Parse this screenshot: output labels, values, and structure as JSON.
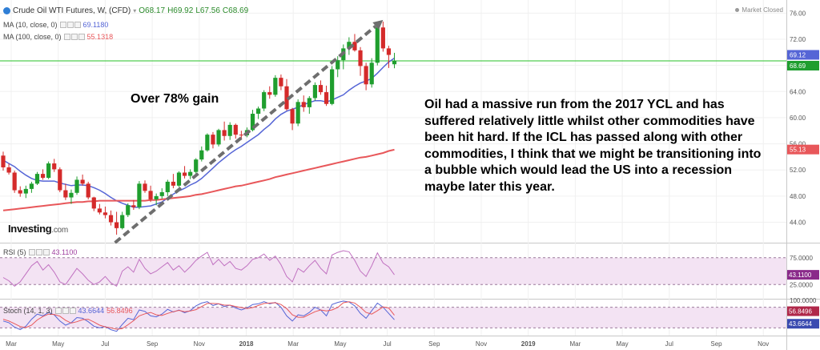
{
  "header": {
    "title": "Crude Oil WTI Futures, W, (CFD)",
    "ohlc": [
      "O68.17",
      "H69.92",
      "L67.56",
      "C68.69"
    ],
    "market_status": "Market Closed",
    "ma10_label": "MA (10, close, 0)",
    "ma10_value": "69.1180",
    "ma100_label": "MA (100, close, 0)",
    "ma100_value": "55.1318",
    "rsi_label": "RSI (5)",
    "rsi_value": "43.1100",
    "stoch_label": "Stoch (14, 1, 3)",
    "stoch_k_value": "43.6644",
    "stoch_d_value": "56.8496"
  },
  "annotations": {
    "gain": "Over 78% gain",
    "commentary": "Oil had a massive run from the 2017 YCL and has suffered relatively little whilst other commodities have been hit hard. If the ICL has passed along with other commodities, I think that we might be transitioning into a bubble which would lead the US into a recession maybe later this year."
  },
  "logo": {
    "name": "Investing",
    "suffix": ".com"
  },
  "colors": {
    "up": "#1f9e2e",
    "down": "#d42a2a",
    "ma10": "#5565d6",
    "ma100": "#e8575a",
    "rsi": "#c070c0",
    "stoch_k": "#5565d6",
    "stoch_d": "#e8575a",
    "price_line": "#27c227",
    "band": "#f3e3f3"
  },
  "chart_data": [
    {
      "type": "candlestick",
      "title": "Crude Oil WTI Futures, W, (CFD)",
      "x_ticks": [
        "Mar",
        "May",
        "Jul",
        "Sep",
        "Nov",
        "2018",
        "Mar",
        "May",
        "Jul",
        "Sep",
        "Nov",
        "2019",
        "Mar",
        "May",
        "Jul",
        "Sep",
        "Nov"
      ],
      "ylim": [
        41,
        78
      ],
      "y_ticks": [
        "44.00",
        "48.00",
        "52.00",
        "56.00",
        "60.00",
        "64.00",
        "68.00",
        "72.00",
        "76.00"
      ],
      "price_labels": [
        "69.12",
        "68.69",
        "55.13"
      ],
      "ohlc": [
        [
          54.2,
          54.8,
          51.9,
          52.4
        ],
        [
          52.4,
          53.0,
          51.3,
          51.6
        ],
        [
          51.6,
          51.9,
          48.5,
          48.9
        ],
        [
          48.9,
          49.5,
          47.9,
          48.4
        ],
        [
          48.4,
          49.6,
          47.7,
          49.1
        ],
        [
          49.1,
          50.2,
          48.5,
          49.9
        ],
        [
          49.9,
          51.7,
          49.7,
          51.4
        ],
        [
          51.4,
          52.1,
          50.5,
          50.8
        ],
        [
          50.8,
          53.3,
          50.6,
          53.0
        ],
        [
          53.0,
          53.7,
          51.7,
          52.1
        ],
        [
          52.1,
          52.4,
          48.6,
          48.9
        ],
        [
          48.9,
          49.9,
          47.4,
          47.8
        ],
        [
          47.8,
          49.0,
          46.8,
          48.5
        ],
        [
          48.5,
          51.0,
          48.2,
          50.5
        ],
        [
          50.5,
          51.3,
          49.6,
          49.9
        ],
        [
          49.9,
          50.2,
          47.5,
          47.8
        ],
        [
          47.8,
          47.9,
          45.7,
          46.1
        ],
        [
          46.1,
          46.8,
          45.2,
          45.5
        ],
        [
          45.5,
          46.4,
          44.6,
          45.1
        ],
        [
          45.1,
          45.8,
          43.5,
          44.0
        ],
        [
          44.0,
          45.6,
          42.1,
          43.1
        ],
        [
          43.1,
          45.6,
          42.9,
          45.1
        ],
        [
          45.1,
          46.9,
          44.8,
          46.6
        ],
        [
          46.6,
          47.4,
          45.9,
          46.3
        ],
        [
          46.3,
          50.3,
          46.0,
          49.9
        ],
        [
          49.9,
          50.4,
          48.5,
          48.8
        ],
        [
          48.8,
          49.6,
          47.1,
          47.5
        ],
        [
          47.5,
          48.4,
          46.6,
          48.0
        ],
        [
          48.0,
          49.2,
          47.6,
          48.6
        ],
        [
          48.6,
          50.5,
          48.0,
          50.2
        ],
        [
          50.2,
          51.4,
          49.2,
          49.6
        ],
        [
          49.6,
          51.8,
          49.4,
          51.6
        ],
        [
          51.6,
          52.6,
          50.7,
          51.1
        ],
        [
          51.1,
          52.1,
          50.6,
          51.7
        ],
        [
          51.7,
          53.8,
          51.3,
          53.6
        ],
        [
          53.6,
          55.6,
          53.3,
          55.0
        ],
        [
          55.0,
          57.6,
          54.8,
          57.4
        ],
        [
          57.4,
          57.8,
          55.3,
          55.9
        ],
        [
          55.9,
          58.3,
          55.6,
          58.1
        ],
        [
          58.1,
          59.4,
          56.5,
          57.2
        ],
        [
          57.2,
          59.3,
          56.6,
          58.9
        ],
        [
          58.9,
          59.1,
          56.8,
          57.4
        ],
        [
          57.4,
          58.0,
          56.6,
          57.3
        ],
        [
          57.3,
          58.5,
          57.0,
          58.1
        ],
        [
          58.1,
          61.2,
          57.9,
          60.6
        ],
        [
          60.6,
          61.7,
          59.8,
          61.4
        ],
        [
          61.4,
          64.2,
          61.0,
          63.9
        ],
        [
          63.9,
          64.8,
          62.9,
          63.5
        ],
        [
          63.5,
          66.5,
          63.2,
          66.1
        ],
        [
          66.1,
          66.6,
          64.2,
          64.8
        ],
        [
          64.8,
          65.9,
          61.1,
          61.3
        ],
        [
          61.3,
          61.5,
          58.1,
          59.1
        ],
        [
          59.1,
          62.8,
          58.7,
          62.4
        ],
        [
          62.4,
          63.4,
          60.9,
          61.6
        ],
        [
          61.6,
          63.3,
          60.6,
          63.0
        ],
        [
          63.0,
          65.4,
          62.6,
          65.0
        ],
        [
          65.0,
          65.7,
          63.5,
          63.9
        ],
        [
          63.9,
          64.9,
          61.8,
          62.1
        ],
        [
          62.1,
          67.9,
          61.9,
          67.4
        ],
        [
          67.4,
          69.4,
          66.2,
          68.8
        ],
        [
          68.8,
          71.2,
          67.4,
          70.6
        ],
        [
          70.6,
          72.3,
          69.6,
          71.6
        ],
        [
          71.6,
          72.8,
          70.1,
          70.3
        ],
        [
          70.3,
          70.8,
          66.4,
          67.9
        ],
        [
          67.9,
          68.4,
          64.2,
          65.1
        ],
        [
          65.1,
          69.1,
          64.6,
          68.4
        ],
        [
          68.4,
          74.1,
          68.0,
          73.8
        ],
        [
          73.8,
          74.7,
          70.1,
          70.6
        ],
        [
          70.6,
          71.0,
          67.6,
          69.6
        ],
        [
          68.17,
          69.92,
          67.56,
          68.69
        ]
      ],
      "series": [
        {
          "name": "MA (10, close, 0)",
          "values": [
            53.5,
            53.0,
            52.5,
            51.8,
            51.2,
            50.7,
            50.4,
            50.3,
            50.3,
            50.3,
            50.0,
            49.8,
            49.6,
            49.7,
            49.7,
            49.6,
            49.3,
            48.9,
            48.4,
            47.8,
            47.3,
            46.9,
            46.6,
            46.3,
            46.3,
            46.4,
            46.5,
            46.8,
            47.1,
            47.7,
            48.3,
            48.8,
            49.2,
            49.7,
            50.1,
            50.7,
            51.5,
            52.3,
            53.1,
            53.8,
            54.5,
            55.1,
            55.6,
            56.2,
            56.8,
            57.4,
            58.2,
            58.9,
            59.8,
            60.5,
            61.0,
            61.3,
            61.6,
            62.0,
            62.3,
            62.6,
            62.6,
            62.4,
            62.7,
            63.1,
            63.5,
            64.2,
            64.8,
            65.3,
            65.6,
            66.0,
            66.8,
            67.7,
            68.5,
            69.1
          ]
        },
        {
          "name": "MA (100, close, 0)",
          "values": [
            45.8,
            45.9,
            46.0,
            46.1,
            46.2,
            46.3,
            46.4,
            46.5,
            46.6,
            46.7,
            46.8,
            46.9,
            47.0,
            47.1,
            47.1,
            47.2,
            47.2,
            47.3,
            47.3,
            47.3,
            47.3,
            47.3,
            47.3,
            47.3,
            47.3,
            47.3,
            47.4,
            47.4,
            47.5,
            47.6,
            47.7,
            47.8,
            47.9,
            48.0,
            48.2,
            48.3,
            48.5,
            48.7,
            48.9,
            49.1,
            49.3,
            49.5,
            49.6,
            49.8,
            50.0,
            50.2,
            50.4,
            50.6,
            50.9,
            51.1,
            51.3,
            51.5,
            51.7,
            51.9,
            52.1,
            52.3,
            52.5,
            52.7,
            52.9,
            53.1,
            53.3,
            53.5,
            53.7,
            53.9,
            54.0,
            54.2,
            54.4,
            54.6,
            54.9,
            55.1
          ]
        }
      ]
    },
    {
      "type": "line",
      "title": "RSI (5)",
      "ylim": [
        0,
        100
      ],
      "y_ticks": [
        "75.0000",
        "25.0000"
      ],
      "bands": [
        25,
        75
      ],
      "series": [
        {
          "name": "RSI (5)",
          "values": [
            38,
            32,
            22,
            30,
            45,
            60,
            68,
            52,
            62,
            48,
            30,
            25,
            40,
            55,
            45,
            33,
            25,
            30,
            40,
            28,
            22,
            50,
            58,
            48,
            72,
            55,
            45,
            50,
            58,
            66,
            52,
            60,
            48,
            58,
            70,
            78,
            85,
            62,
            72,
            60,
            68,
            55,
            52,
            60,
            72,
            75,
            82,
            70,
            78,
            62,
            40,
            30,
            55,
            48,
            60,
            70,
            55,
            45,
            80,
            85,
            88,
            86,
            70,
            50,
            40,
            60,
            84,
            65,
            58,
            43.11
          ]
        }
      ]
    },
    {
      "type": "line",
      "title": "Stoch (14, 1, 3)",
      "ylim": [
        0,
        100
      ],
      "y_ticks": [
        "100.0000"
      ],
      "bands": [
        20,
        80
      ],
      "series": [
        {
          "name": "%K",
          "values": [
            40,
            35,
            22,
            15,
            25,
            45,
            60,
            55,
            65,
            58,
            40,
            28,
            35,
            50,
            48,
            38,
            25,
            20,
            24,
            15,
            10,
            30,
            48,
            44,
            72,
            68,
            55,
            52,
            60,
            74,
            66,
            72,
            64,
            70,
            84,
            92,
            96,
            85,
            90,
            82,
            86,
            78,
            72,
            78,
            88,
            90,
            96,
            90,
            94,
            80,
            55,
            40,
            58,
            55,
            65,
            80,
            72,
            55,
            88,
            94,
            98,
            95,
            84,
            62,
            48,
            70,
            92,
            80,
            62,
            43.66
          ]
        },
        {
          "name": "%D",
          "values": [
            45,
            40,
            32,
            24,
            21,
            28,
            43,
            53,
            60,
            59,
            54,
            42,
            34,
            38,
            44,
            45,
            37,
            28,
            23,
            20,
            16,
            18,
            29,
            41,
            55,
            61,
            65,
            58,
            56,
            62,
            67,
            71,
            67,
            69,
            73,
            82,
            91,
            91,
            90,
            86,
            86,
            82,
            79,
            76,
            79,
            85,
            91,
            92,
            93,
            88,
            76,
            58,
            51,
            51,
            59,
            67,
            72,
            69,
            72,
            79,
            93,
            96,
            92,
            80,
            65,
            60,
            70,
            81,
            78,
            56.85
          ]
        }
      ]
    }
  ]
}
